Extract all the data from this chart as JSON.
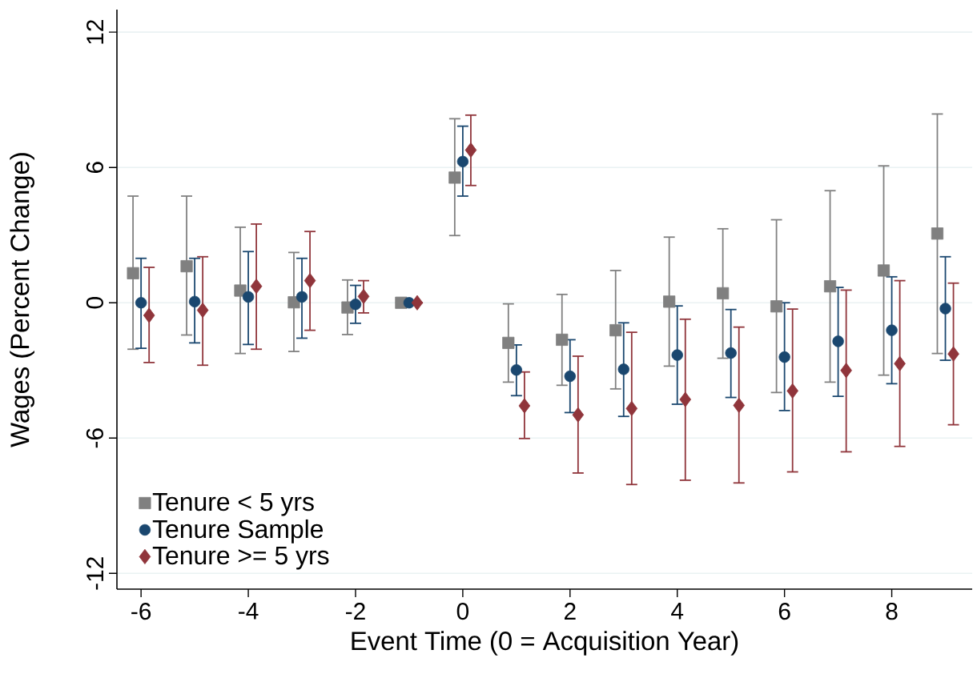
{
  "chart_data": {
    "type": "scatter",
    "xlabel": "Event Time (0 = Acquisition Year)",
    "ylabel": "Wages (Percent Change)",
    "xlim": [
      -6.45,
      9.5
    ],
    "ylim": [
      -12.7,
      13.0
    ],
    "xticks": [
      -6,
      -4,
      -2,
      0,
      2,
      4,
      6,
      8
    ],
    "yticks": [
      -12,
      -6,
      0,
      6,
      12
    ],
    "grid": "y",
    "legend": "bottom left",
    "series": [
      {
        "name": "Tenure < 5 yrs",
        "color": "#808080",
        "marker": "square",
        "x": [
          -6.15,
          -5.15,
          -4.15,
          -3.15,
          -2.15,
          -1.15,
          -0.15,
          0.85,
          1.85,
          2.85,
          3.85,
          4.85,
          5.85,
          6.85,
          7.85,
          8.85
        ],
        "values": [
          1.31,
          1.62,
          0.54,
          0.02,
          -0.21,
          0,
          5.55,
          -1.78,
          -1.64,
          -1.22,
          0.05,
          0.42,
          -0.16,
          0.73,
          1.43,
          3.07
        ],
        "errors": [
          [
            -2.06,
            4.73
          ],
          [
            -1.43,
            4.73
          ],
          [
            -2.25,
            3.35
          ],
          [
            -2.16,
            2.23
          ],
          [
            -1.41,
            1.01
          ],
          null,
          [
            2.98,
            8.16
          ],
          [
            -3.52,
            -0.05
          ],
          [
            -3.66,
            0.37
          ],
          [
            -3.82,
            1.43
          ],
          [
            -2.81,
            2.91
          ],
          [
            -2.46,
            3.28
          ],
          [
            -3.98,
            3.68
          ],
          [
            -3.52,
            4.97
          ],
          [
            -3.21,
            6.07
          ],
          [
            -2.25,
            8.37
          ]
        ]
      },
      {
        "name": "Tenure Sample",
        "color": "#1a476f",
        "marker": "circle",
        "x": [
          -6,
          -5,
          -4,
          -3,
          -2,
          -1,
          0,
          1,
          2,
          3,
          4,
          5,
          6,
          7,
          8,
          9
        ],
        "values": [
          0,
          0.05,
          0.26,
          0.26,
          -0.07,
          0,
          6.26,
          -2.98,
          -3.26,
          -2.95,
          -2.32,
          -2.23,
          -2.41,
          -1.71,
          -1.22,
          -0.26
        ],
        "errors": [
          [
            -2.02,
            1.97
          ],
          [
            -1.78,
            1.97
          ],
          [
            -1.85,
            2.27
          ],
          [
            -1.57,
            1.97
          ],
          [
            -0.91,
            0.77
          ],
          null,
          [
            4.73,
            7.83
          ],
          [
            -4.12,
            -1.87
          ],
          [
            -4.87,
            -1.64
          ],
          [
            -5.04,
            -0.89
          ],
          [
            -4.5,
            -0.14
          ],
          [
            -4.2,
            -0.3
          ],
          [
            -4.78,
            0
          ],
          [
            -4.15,
            0.68
          ],
          [
            -3.59,
            1.15
          ],
          [
            -2.55,
            2.04
          ]
        ]
      },
      {
        "name": "Tenure >= 5 yrs",
        "color": "#90353b",
        "marker": "diamond",
        "x": [
          -5.85,
          -4.85,
          -3.85,
          -2.85,
          -1.85,
          -0.85,
          0.15,
          1.15,
          2.15,
          3.15,
          4.15,
          5.15,
          6.15,
          7.15,
          8.15,
          9.15
        ],
        "values": [
          -0.56,
          -0.33,
          0.73,
          0.98,
          0.28,
          0,
          6.77,
          -4.57,
          -4.97,
          -4.69,
          -4.29,
          -4.55,
          -3.91,
          -3.0,
          -2.7,
          -2.27
        ],
        "errors": [
          [
            -2.65,
            1.57
          ],
          [
            -2.77,
            2.04
          ],
          [
            -2.06,
            3.49
          ],
          [
            -1.22,
            3.16
          ],
          [
            -0.45,
            0.98
          ],
          null,
          [
            5.2,
            8.32
          ],
          [
            -6.02,
            -3.07
          ],
          [
            -7.55,
            -2.37
          ],
          [
            -8.06,
            -1.31
          ],
          [
            -7.87,
            -0.73
          ],
          [
            -7.99,
            -1.08
          ],
          [
            -7.5,
            -0.28
          ],
          [
            -6.61,
            0.56
          ],
          [
            -6.37,
            0.98
          ],
          [
            -5.41,
            0.87
          ]
        ]
      }
    ]
  }
}
